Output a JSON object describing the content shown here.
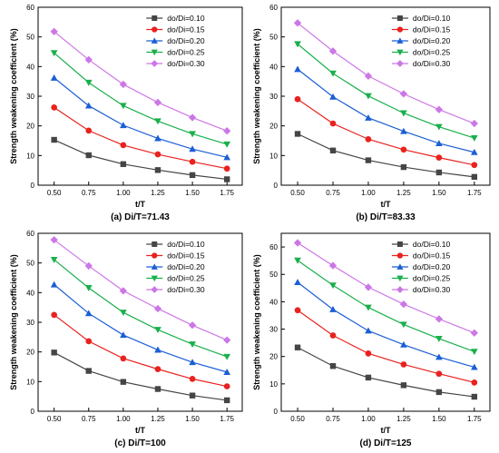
{
  "colors": [
    "#454545",
    "#e8221f",
    "#1b5fd6",
    "#19b04b",
    "#cc77e6"
  ],
  "markers": [
    "square",
    "circle",
    "triangle-up",
    "triangle-down",
    "diamond"
  ],
  "chart_data": [
    {
      "type": "line",
      "caption": "(a) Di/T=71.43",
      "xlabel": "t/T",
      "ylabel": "Strength weakening coefficient (%)",
      "x": [
        0.5,
        0.75,
        1.0,
        1.25,
        1.5,
        1.75
      ],
      "xticks": [
        "0.50",
        "0.75",
        "1.00",
        "1.25",
        "1.50",
        "1.75"
      ],
      "ylim": [
        0,
        60
      ],
      "yticks": [
        "0",
        "10",
        "20",
        "30",
        "40",
        "50",
        "60"
      ],
      "legend_position": "top-right",
      "grid": false,
      "series": [
        {
          "name": "do/Di=0.10",
          "values": [
            15.3,
            10.1,
            7.1,
            5.1,
            3.4,
            2.0
          ]
        },
        {
          "name": "do/Di=0.15",
          "values": [
            26.2,
            18.4,
            13.5,
            10.4,
            7.9,
            5.6
          ]
        },
        {
          "name": "do/Di=0.20",
          "values": [
            36.2,
            26.8,
            20.2,
            15.8,
            12.2,
            9.4
          ]
        },
        {
          "name": "do/Di=0.25",
          "values": [
            44.6,
            34.6,
            26.8,
            21.6,
            17.3,
            13.8
          ]
        },
        {
          "name": "do/Di=0.30",
          "values": [
            51.8,
            42.3,
            34.0,
            27.9,
            22.8,
            18.3
          ]
        }
      ]
    },
    {
      "type": "line",
      "caption": "(b) Di/T=83.33",
      "xlabel": "t/T",
      "ylabel": "Strength weakening coefficient (%)",
      "x": [
        0.5,
        0.75,
        1.0,
        1.25,
        1.5,
        1.75
      ],
      "xticks": [
        "0.50",
        "0.75",
        "1.00",
        "1.25",
        "1.50",
        "1.75"
      ],
      "ylim": [
        0,
        60
      ],
      "yticks": [
        "0",
        "10",
        "20",
        "30",
        "40",
        "50",
        "60"
      ],
      "legend_position": "top-right",
      "grid": false,
      "series": [
        {
          "name": "do/Di=0.10",
          "values": [
            17.3,
            11.7,
            8.4,
            6.1,
            4.3,
            2.8
          ]
        },
        {
          "name": "do/Di=0.15",
          "values": [
            29.0,
            20.8,
            15.5,
            12.0,
            9.3,
            6.8
          ]
        },
        {
          "name": "do/Di=0.20",
          "values": [
            39.1,
            29.8,
            22.7,
            18.2,
            14.1,
            11.1
          ]
        },
        {
          "name": "do/Di=0.25",
          "values": [
            47.6,
            37.7,
            30.1,
            24.3,
            19.7,
            15.9
          ]
        },
        {
          "name": "do/Di=0.30",
          "values": [
            54.7,
            45.2,
            36.8,
            30.8,
            25.5,
            20.8
          ]
        }
      ]
    },
    {
      "type": "line",
      "caption": "(c) Di/T=100",
      "xlabel": "t/T",
      "ylabel": "Strength weakening coefficient (%)",
      "x": [
        0.5,
        0.75,
        1.0,
        1.25,
        1.5,
        1.75
      ],
      "xticks": [
        "0.50",
        "0.75",
        "1.00",
        "1.25",
        "1.50",
        "1.75"
      ],
      "ylim": [
        0,
        60
      ],
      "yticks": [
        "0",
        "10",
        "20",
        "30",
        "40",
        "50",
        "60"
      ],
      "legend_position": "top-right",
      "grid": false,
      "series": [
        {
          "name": "do/Di=0.10",
          "values": [
            19.8,
            13.6,
            9.9,
            7.5,
            5.3,
            3.7
          ]
        },
        {
          "name": "do/Di=0.15",
          "values": [
            32.5,
            23.6,
            17.8,
            14.2,
            10.9,
            8.4
          ]
        },
        {
          "name": "do/Di=0.20",
          "values": [
            42.7,
            33.0,
            25.7,
            20.7,
            16.5,
            13.2
          ]
        },
        {
          "name": "do/Di=0.25",
          "values": [
            51.1,
            41.6,
            33.3,
            27.5,
            22.6,
            18.4
          ]
        },
        {
          "name": "do/Di=0.30",
          "values": [
            57.8,
            49.0,
            40.6,
            34.6,
            29.0,
            24.0
          ]
        }
      ]
    },
    {
      "type": "line",
      "caption": "(d) Di/T=125",
      "xlabel": "t/T",
      "ylabel": "Strength weakening coefficient (%)",
      "x": [
        0.5,
        0.75,
        1.0,
        1.25,
        1.5,
        1.75
      ],
      "xticks": [
        "0.50",
        "0.75",
        "1.00",
        "1.25",
        "1.50",
        "1.75"
      ],
      "ylim": [
        0,
        65
      ],
      "yticks": [
        "0",
        "10",
        "20",
        "30",
        "40",
        "50",
        "60"
      ],
      "legend_position": "top-right",
      "grid": false,
      "series": [
        {
          "name": "do/Di=0.10",
          "values": [
            23.3,
            16.5,
            12.3,
            9.5,
            7.0,
            5.3
          ]
        },
        {
          "name": "do/Di=0.15",
          "values": [
            36.9,
            27.7,
            21.1,
            17.1,
            13.7,
            10.5
          ]
        },
        {
          "name": "do/Di=0.20",
          "values": [
            47.1,
            37.2,
            29.4,
            24.3,
            19.8,
            16.1
          ]
        },
        {
          "name": "do/Di=0.25",
          "values": [
            55.1,
            46.0,
            37.9,
            31.7,
            26.5,
            21.8
          ]
        },
        {
          "name": "do/Di=0.30",
          "values": [
            61.5,
            53.2,
            45.3,
            39.1,
            33.7,
            28.6
          ]
        }
      ]
    }
  ]
}
